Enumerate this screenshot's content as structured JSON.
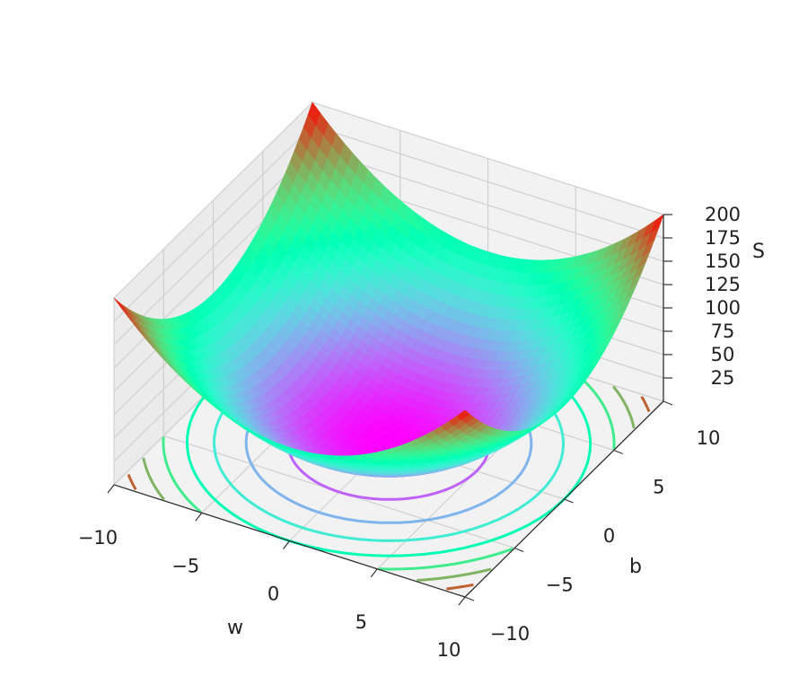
{
  "chart_data": {
    "type": "surface3d",
    "function": "S = w^2 + b^2",
    "colormap": "rainbow",
    "contour_projection": true,
    "grid": true,
    "xlabel": "w",
    "ylabel": "b",
    "zlabel": "S",
    "xlim": [
      -10,
      10
    ],
    "ylim": [
      -10,
      10
    ],
    "zlim": [
      0,
      200
    ],
    "x_ticks": [
      {
        "value": -10,
        "label": "−10"
      },
      {
        "value": -5,
        "label": "−5"
      },
      {
        "value": 0,
        "label": "0"
      },
      {
        "value": 5,
        "label": "5"
      },
      {
        "value": 10,
        "label": "10"
      }
    ],
    "y_ticks": [
      {
        "value": -10,
        "label": "−10"
      },
      {
        "value": -5,
        "label": "−5"
      },
      {
        "value": 0,
        "label": "0"
      },
      {
        "value": 5,
        "label": "5"
      },
      {
        "value": 10,
        "label": "10"
      }
    ],
    "z_ticks": [
      {
        "value": 25,
        "label": "25"
      },
      {
        "value": 50,
        "label": "50"
      },
      {
        "value": 75,
        "label": "75"
      },
      {
        "value": 100,
        "label": "100"
      },
      {
        "value": 125,
        "label": "125"
      },
      {
        "value": 150,
        "label": "150"
      },
      {
        "value": 175,
        "label": "175"
      },
      {
        "value": 200,
        "label": "200"
      }
    ],
    "contour_levels": [
      25,
      50,
      75,
      100,
      125,
      150,
      175
    ],
    "colors": {
      "pane": "#f2f2f2",
      "pane_dark": "#ebebeb",
      "grid": "#d0d0d0",
      "edge": "#333333"
    }
  }
}
